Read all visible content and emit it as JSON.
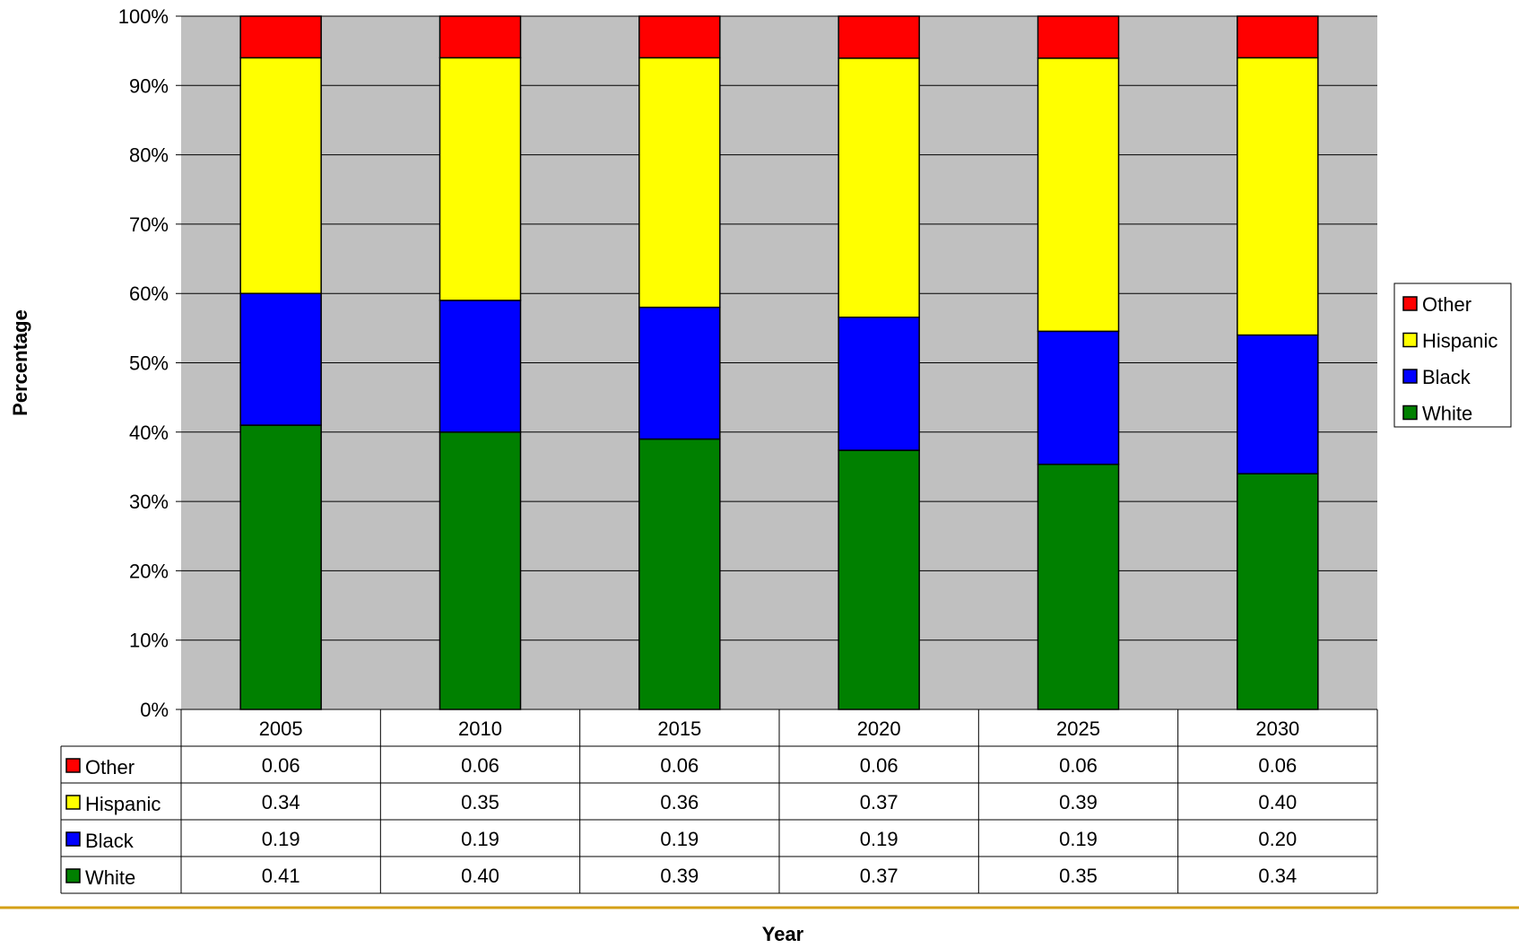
{
  "chart_data": {
    "type": "bar",
    "stacked": true,
    "percent_stacked": true,
    "categories": [
      "2005",
      "2010",
      "2015",
      "2020",
      "2025",
      "2030"
    ],
    "series": [
      {
        "name": "White",
        "color": "#008000",
        "values": [
          "0.41",
          "0.40",
          "0.39",
          "0.37",
          "0.35",
          "0.34"
        ]
      },
      {
        "name": "Black",
        "color": "#0000FF",
        "values": [
          "0.19",
          "0.19",
          "0.19",
          "0.19",
          "0.19",
          "0.20"
        ]
      },
      {
        "name": "Hispanic",
        "color": "#FFFF00",
        "values": [
          "0.34",
          "0.35",
          "0.36",
          "0.37",
          "0.39",
          "0.40"
        ]
      },
      {
        "name": "Other",
        "color": "#FF0000",
        "values": [
          "0.06",
          "0.06",
          "0.06",
          "0.06",
          "0.06",
          "0.06"
        ]
      }
    ],
    "table_order": [
      "Other",
      "Hispanic",
      "Black",
      "White"
    ],
    "yticks": [
      "0%",
      "10%",
      "20%",
      "30%",
      "40%",
      "50%",
      "60%",
      "70%",
      "80%",
      "90%",
      "100%"
    ],
    "ylim": [
      0,
      1
    ],
    "xlabel": "Year",
    "ylabel": "Percentage",
    "legend": {
      "position": "right",
      "order": [
        "Other",
        "Hispanic",
        "Black",
        "White"
      ]
    },
    "grid": true,
    "data_table": true,
    "plot_background": "#C0C0C0",
    "footer_rule_color": "#D4A017"
  }
}
